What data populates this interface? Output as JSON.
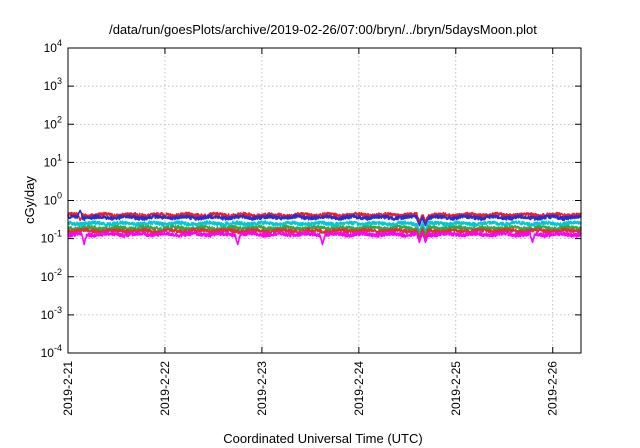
{
  "chart_data": {
    "type": "line",
    "title": "/data/run/goesPlots/archive/2019-02-26/07:00/bryn/../bryn/5daysMoon.plot",
    "xlabel": "Coordinated Universal Time (UTC)",
    "ylabel": "cGy/day",
    "y_scale": "log",
    "ylim": [
      0.0001,
      10000
    ],
    "xlim": [
      "2019-02-21T00:00",
      "2019-02-26T07:00"
    ],
    "grid": true,
    "x_ticks": [
      {
        "value": "2019-02-21T00:00",
        "label": "2019-2-21"
      },
      {
        "value": "2019-02-22T00:00",
        "label": "2019-2-22"
      },
      {
        "value": "2019-02-23T00:00",
        "label": "2019-2-23"
      },
      {
        "value": "2019-02-24T00:00",
        "label": "2019-2-24"
      },
      {
        "value": "2019-02-25T00:00",
        "label": "2019-2-25"
      },
      {
        "value": "2019-02-26T00:00",
        "label": "2019-2-26"
      }
    ],
    "y_ticks": [
      {
        "value": 0.0001,
        "base": "10",
        "exp": "-4"
      },
      {
        "value": 0.001,
        "base": "10",
        "exp": "-3"
      },
      {
        "value": 0.01,
        "base": "10",
        "exp": "-2"
      },
      {
        "value": 0.1,
        "base": "10",
        "exp": "-1"
      },
      {
        "value": 1,
        "base": "10",
        "exp": "0"
      },
      {
        "value": 10,
        "base": "10",
        "exp": "1"
      },
      {
        "value": 100,
        "base": "10",
        "exp": "2"
      },
      {
        "value": 1000,
        "base": "10",
        "exp": "3"
      },
      {
        "value": 10000,
        "base": "10",
        "exp": "4"
      }
    ],
    "series": [
      {
        "color": "#e8202a",
        "level": 0.42,
        "dips": [
          {
            "t": "2019-02-21T03:00",
            "v": 0.3
          },
          {
            "t": "2019-02-24T15:00",
            "v": 0.27
          },
          {
            "t": "2019-02-24T16:30",
            "v": 0.27
          }
        ]
      },
      {
        "color": "#2b2bd8",
        "level": 0.36,
        "dips": [
          {
            "t": "2019-02-21T03:00",
            "v": 0.55
          },
          {
            "t": "2019-02-24T15:00",
            "v": 0.22
          },
          {
            "t": "2019-02-24T16:30",
            "v": 0.22
          }
        ]
      },
      {
        "color": "#00c8d8",
        "level": 0.25,
        "dips": [
          {
            "t": "2019-02-24T15:00",
            "v": 0.15
          },
          {
            "t": "2019-02-24T16:30",
            "v": 0.15
          }
        ]
      },
      {
        "color": "#38a838",
        "level": 0.19,
        "dips": [
          {
            "t": "2019-02-24T15:00",
            "v": 0.12
          },
          {
            "t": "2019-02-24T16:30",
            "v": 0.12
          }
        ]
      },
      {
        "color": "#e03030",
        "level": 0.16,
        "dips": [
          {
            "t": "2019-02-24T15:00",
            "v": 0.1
          },
          {
            "t": "2019-02-24T16:30",
            "v": 0.1
          }
        ]
      },
      {
        "color": "#ff00ff",
        "level": 0.13,
        "dips": [
          {
            "t": "2019-02-21T04:00",
            "v": 0.07
          },
          {
            "t": "2019-02-22T18:00",
            "v": 0.07
          },
          {
            "t": "2019-02-23T15:00",
            "v": 0.07
          },
          {
            "t": "2019-02-24T15:00",
            "v": 0.08
          },
          {
            "t": "2019-02-24T16:30",
            "v": 0.08
          },
          {
            "t": "2019-02-25T19:00",
            "v": 0.08
          }
        ]
      }
    ]
  }
}
